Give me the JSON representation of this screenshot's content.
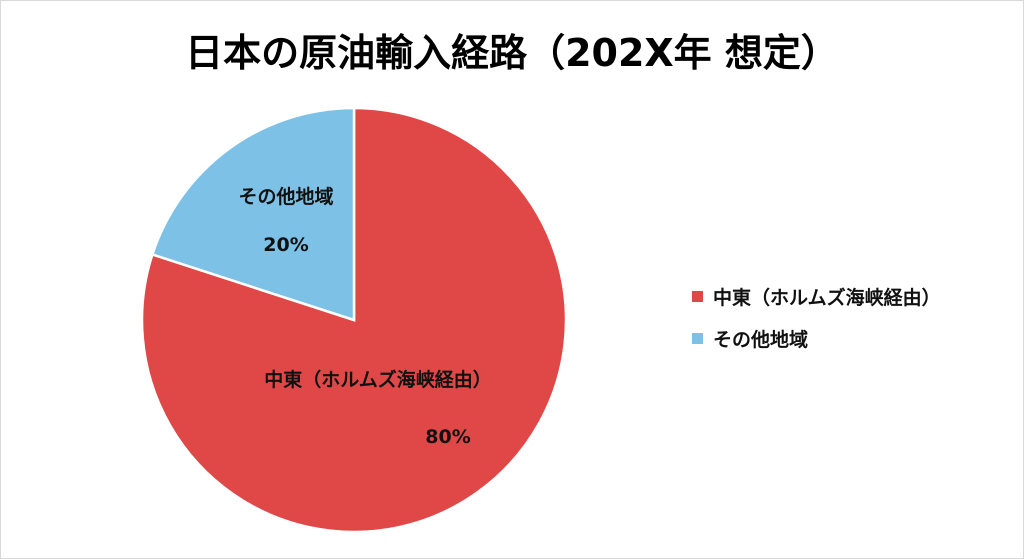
{
  "chart_data": {
    "type": "pie",
    "title": "日本の原油輸入経路（202X年 想定）",
    "categories": [
      "中東（ホルムズ海峡経由）",
      "その他地域"
    ],
    "values": [
      80,
      20
    ],
    "value_labels": [
      "80%",
      "20%"
    ],
    "colors": [
      "#e04848",
      "#7ec1e6"
    ],
    "legend_position": "right"
  }
}
